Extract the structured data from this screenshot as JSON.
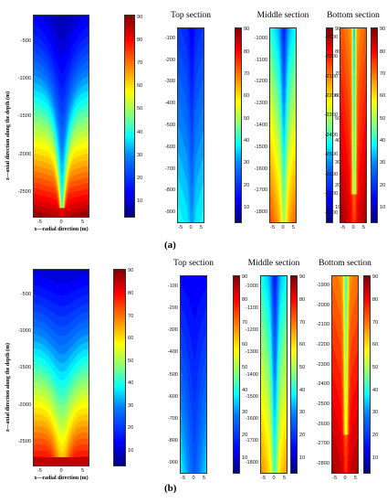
{
  "figure_a": {
    "label": "(a)",
    "main": {
      "ylabel": "z—axial direction along the depth (m)",
      "xlabel": "x—radial direction (m)",
      "yticks": [
        "-500",
        "-1000",
        "-1500",
        "-2000",
        "-2500"
      ],
      "xticks": [
        "-5",
        "0",
        "5"
      ],
      "cbar": [
        "90",
        "80",
        "70",
        "60",
        "50",
        "40",
        "30",
        "20",
        "10"
      ]
    },
    "top": {
      "title": "Top section",
      "yticks": [
        "-100",
        "-200",
        "-300",
        "-400",
        "-500",
        "-600",
        "-700",
        "-800",
        "-900"
      ],
      "xticks": [
        "-5",
        "0",
        "5"
      ],
      "cbar": [
        "90",
        "80",
        "70",
        "60",
        "50",
        "40",
        "30",
        "20",
        "10"
      ]
    },
    "middle": {
      "title": "Middle section",
      "yticks": [
        "-1000",
        "-1100",
        "-1200",
        "-1300",
        "-1400",
        "-1500",
        "-1600",
        "-1700",
        "-1800"
      ],
      "xticks": [
        "-5",
        "0",
        "5"
      ],
      "cbar": [
        "90",
        "80",
        "70",
        "60",
        "50",
        "40",
        "30",
        "20",
        "10"
      ]
    },
    "bottom": {
      "title": "Bottom section",
      "yticks": [
        "-1900",
        "-2000",
        "-2100",
        "-2200",
        "-2300",
        "-2400",
        "-2500",
        "-2600",
        "-2700",
        "-2800"
      ],
      "xticks": [
        "-5",
        "0",
        "5"
      ],
      "cbar": [
        "90",
        "80",
        "70",
        "60",
        "50",
        "40",
        "30",
        "20",
        "10"
      ]
    }
  },
  "figure_b": {
    "label": "(b)",
    "main": {
      "ylabel": "z—axial direction along the depth (m)",
      "xlabel": "x—radial direction (m)",
      "yticks": [
        "-500",
        "-1000",
        "-1500",
        "-2000",
        "-2500"
      ],
      "xticks": [
        "-5",
        "0",
        "5"
      ],
      "cbar": [
        "90",
        "80",
        "70",
        "60",
        "50",
        "40",
        "30",
        "20",
        "10"
      ]
    },
    "top": {
      "title": "Top section",
      "yticks": [
        "-100",
        "-200",
        "-300",
        "-400",
        "-500",
        "-600",
        "-700",
        "-800",
        "-900"
      ],
      "xticks": [
        "-5",
        "0",
        "5"
      ],
      "cbar": [
        "90",
        "80",
        "70",
        "60",
        "50",
        "40",
        "30",
        "20",
        "10"
      ]
    },
    "middle": {
      "title": "Middle section",
      "yticks": [
        "-1000",
        "-1100",
        "-1200",
        "-1300",
        "-1400",
        "-1500",
        "-1600",
        "-1700",
        "-1800"
      ],
      "xticks": [
        "-5",
        "0",
        "5"
      ],
      "cbar": [
        "90",
        "80",
        "70",
        "60",
        "50",
        "40",
        "30",
        "20",
        "10"
      ]
    },
    "bottom": {
      "title": "Bottom section",
      "yticks": [
        "-1900",
        "-2000",
        "-2100",
        "-2200",
        "-2300",
        "-2400",
        "-2500",
        "-2600",
        "-2700",
        "-2800"
      ],
      "xticks": [
        "-5",
        "0",
        "5"
      ],
      "cbar": [
        "90",
        "80",
        "70",
        "60",
        "50",
        "40",
        "30",
        "20",
        "10"
      ]
    }
  }
}
